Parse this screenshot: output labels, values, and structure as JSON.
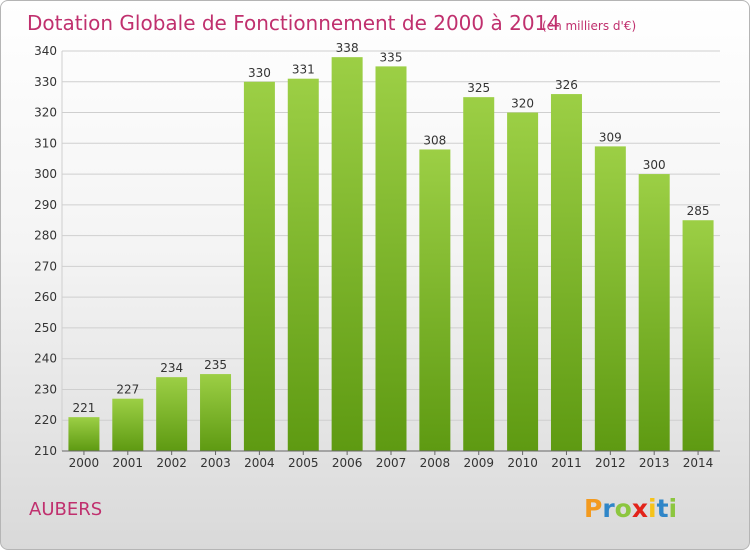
{
  "chart_data": {
    "type": "bar",
    "title": "Dotation Globale de Fonctionnement de 2000 à 2014",
    "unit_note": "(en milliers d'€)",
    "categories": [
      "2000",
      "2001",
      "2002",
      "2003",
      "2004",
      "2005",
      "2006",
      "2007",
      "2008",
      "2009",
      "2010",
      "2011",
      "2012",
      "2013",
      "2014"
    ],
    "values": [
      221,
      227,
      234,
      235,
      330,
      331,
      338,
      335,
      308,
      325,
      320,
      326,
      309,
      300,
      285
    ],
    "ylim": [
      210,
      340
    ],
    "yticks": [
      210,
      220,
      230,
      240,
      250,
      260,
      270,
      280,
      290,
      300,
      310,
      320,
      330,
      340
    ],
    "grid": true,
    "bar_color_top": "#9ccf45",
    "bar_color_bottom": "#5e9a12"
  },
  "commune": "AUBERS",
  "logo": {
    "letters": [
      "P",
      "r",
      "o",
      "x",
      "i",
      "t",
      "i"
    ],
    "colors": [
      "#f39a1e",
      "#2f86c8",
      "#8cc63f",
      "#e2231a",
      "#f6c31a",
      "#2f86c8",
      "#8cc63f"
    ]
  },
  "colors": {
    "title": "#c0306e",
    "grid": "#cfcfcf",
    "axis": "#666666"
  }
}
